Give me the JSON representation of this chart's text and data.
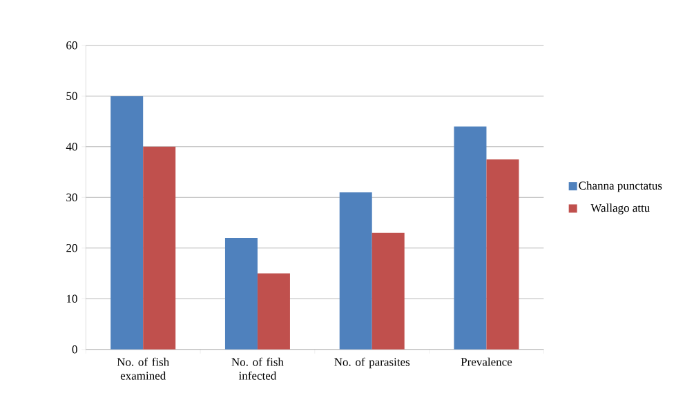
{
  "chart_data": {
    "type": "bar",
    "categories": [
      "No. of fish examined",
      "No. of fish infected",
      "No. of parasites",
      "Prevalence"
    ],
    "series": [
      {
        "name": "Channa punctatus",
        "color": "#4f81bd",
        "values": [
          50,
          22,
          31,
          44
        ]
      },
      {
        "name": "Wallago attu",
        "color": "#c0504d",
        "values": [
          40,
          15,
          23,
          37.5
        ]
      }
    ],
    "ylim": [
      0,
      60
    ],
    "yticks": [
      0,
      10,
      20,
      30,
      40,
      50,
      60
    ],
    "grid": "y",
    "legend": "right"
  }
}
